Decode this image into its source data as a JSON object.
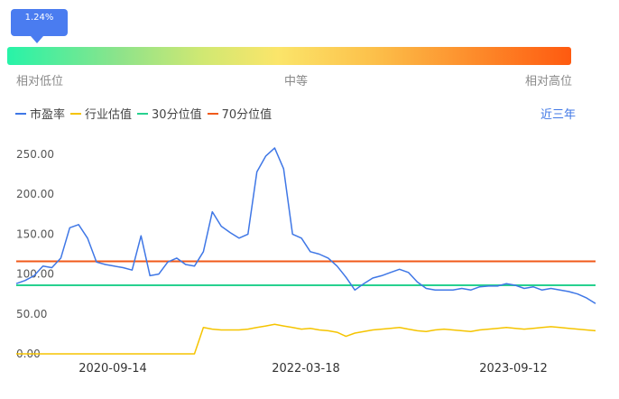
{
  "indicator": {
    "value_label": "1.24%",
    "position": 0.0124,
    "labels": {
      "low": "相对低位",
      "mid": "中等",
      "high": "相对高位"
    }
  },
  "legend": [
    {
      "name": "市盈率",
      "color": "#3f77e6"
    },
    {
      "name": "行业估值",
      "color": "#f5c400"
    },
    {
      "name": "30分位值",
      "color": "#27d18f"
    },
    {
      "name": "70分位值",
      "color": "#f05a1a"
    }
  ],
  "range_selector": "近三年",
  "chart_data": {
    "type": "line",
    "ylim": [
      0,
      250
    ],
    "yticks": [
      "0.00",
      "50.00",
      "100.00",
      "150.00",
      "200.00",
      "250.00"
    ],
    "xticks": [
      "2020-09-14",
      "2022-03-18",
      "2023-09-12"
    ],
    "series": [
      {
        "name": "市盈率",
        "color": "#3f77e6",
        "values": [
          88,
          92,
          98,
          110,
          108,
          120,
          158,
          162,
          145,
          115,
          112,
          110,
          108,
          105,
          148,
          98,
          100,
          115,
          120,
          112,
          110,
          128,
          178,
          160,
          152,
          145,
          150,
          228,
          248,
          258,
          232,
          150,
          145,
          128,
          125,
          120,
          110,
          96,
          80,
          88,
          95,
          98,
          102,
          106,
          102,
          90,
          82,
          80,
          80,
          80,
          82,
          80,
          84,
          85,
          85,
          88,
          86,
          82,
          84,
          80,
          82,
          80,
          78,
          75,
          70,
          63
        ]
      },
      {
        "name": "行业估值",
        "color": "#f5c400",
        "values": [
          0,
          0,
          0,
          0,
          0,
          0,
          0,
          0,
          0,
          0,
          0,
          0,
          0,
          0,
          0,
          0,
          0,
          0,
          0,
          0,
          0,
          33,
          31,
          30,
          30,
          30,
          31,
          33,
          35,
          37,
          35,
          33,
          31,
          32,
          30,
          29,
          27,
          22,
          26,
          28,
          30,
          31,
          32,
          33,
          31,
          29,
          28,
          30,
          31,
          30,
          29,
          28,
          30,
          31,
          32,
          33,
          32,
          31,
          32,
          33,
          34,
          33,
          32,
          31,
          30,
          29
        ]
      },
      {
        "name": "30分位值",
        "color": "#27d18f",
        "values": [
          86,
          86
        ]
      },
      {
        "name": "70分位值",
        "color": "#f05a1a",
        "values": [
          116,
          116
        ]
      }
    ]
  }
}
